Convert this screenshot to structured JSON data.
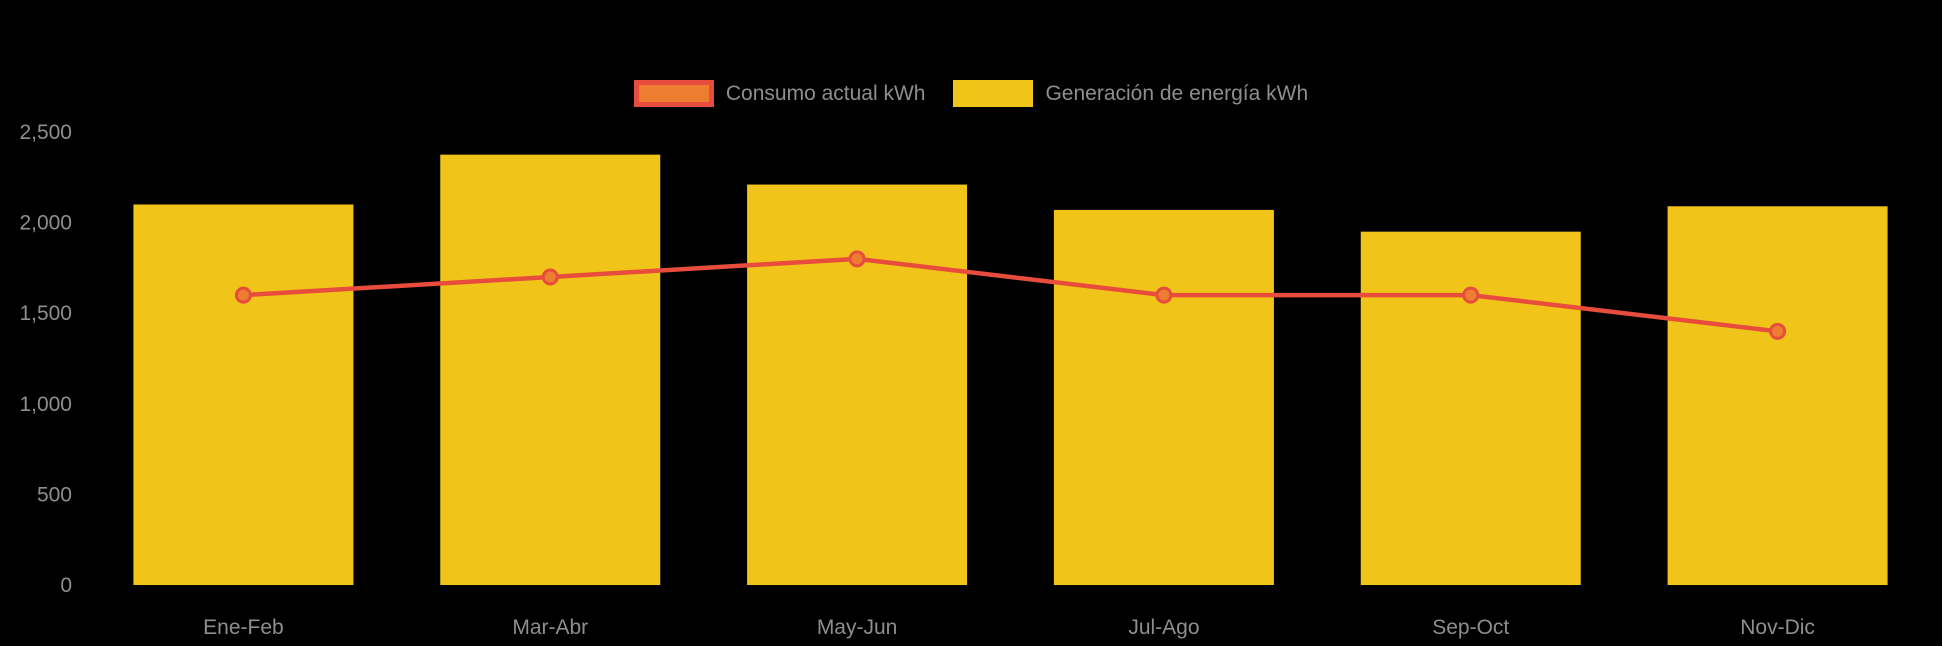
{
  "chart_data": {
    "type": "bar+line",
    "title": "",
    "xlabel": "",
    "ylabel": "",
    "categories": [
      "Ene-Feb",
      "Mar-Abr",
      "May-Jun",
      "Jul-Ago",
      "Sep-Oct",
      "Nov-Dic"
    ],
    "series": [
      {
        "name": "Consumo actual kWh",
        "type": "line",
        "color": "#E74C3C",
        "point_fill": "#ED7D31",
        "values": [
          1600,
          1700,
          1800,
          1600,
          1600,
          1400
        ]
      },
      {
        "name": "Generación de energía kWh",
        "type": "bar",
        "color": "#F0C419",
        "values": [
          2100,
          2375,
          2210,
          2070,
          1950,
          2090
        ]
      }
    ],
    "ylim": [
      0,
      2500
    ],
    "yticks": [
      0,
      500,
      1000,
      1500,
      2000,
      2500
    ],
    "ytick_labels": [
      "0",
      "500",
      "1,000",
      "1,500",
      "2,000",
      "2,500"
    ],
    "grid": false,
    "legend_position": "top-center",
    "background_color": "#000000",
    "axis_label_color": "#8E8E8E"
  }
}
